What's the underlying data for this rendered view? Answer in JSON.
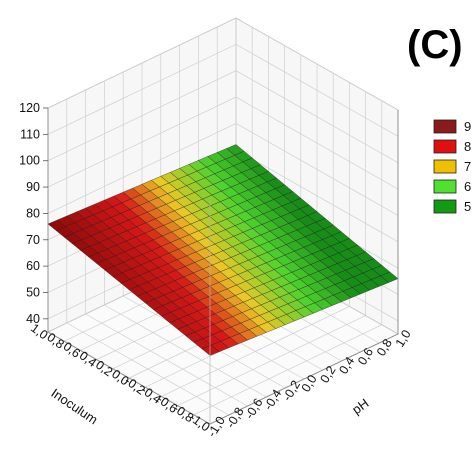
{
  "panel_label": "(C)",
  "chart_data": {
    "type": "surface3d",
    "xlabel": "Inoculum",
    "ylabel": "pH",
    "x_ticks": [
      "1,0",
      "0,8",
      "0,6",
      "0,4",
      "0,2",
      "0,0",
      "-0,2",
      "-0,4",
      "-0,6",
      "-0,8",
      "-1,0"
    ],
    "y_ticks": [
      "-1,0",
      "-0,8",
      "-0,6",
      "-0,4",
      "-0,2",
      "0,0",
      "0,2",
      "0,4",
      "0,6",
      "0,8",
      "1,0"
    ],
    "z_ticks": [
      "40",
      "50",
      "60",
      "70",
      "80",
      "90",
      "100",
      "110",
      "120"
    ],
    "xlim": [
      -1,
      1
    ],
    "ylim": [
      -1,
      1
    ],
    "zlim": [
      35,
      120
    ],
    "surface": {
      "corners": [
        {
          "inoculum": 1,
          "ph": -1,
          "value": 76
        },
        {
          "inoculum": 1,
          "ph": 1,
          "value": 72
        },
        {
          "inoculum": -1,
          "ph": -1,
          "value": 61
        },
        {
          "inoculum": -1,
          "ph": 1,
          "value": 56
        }
      ]
    },
    "legend": [
      {
        "label": "9",
        "color": "#8b1a1a"
      },
      {
        "label": "8",
        "color": "#e01010"
      },
      {
        "label": "7",
        "color": "#f0c000"
      },
      {
        "label": "6",
        "color": "#50e030"
      },
      {
        "label": "5",
        "color": "#129a12"
      }
    ],
    "grid": true
  }
}
